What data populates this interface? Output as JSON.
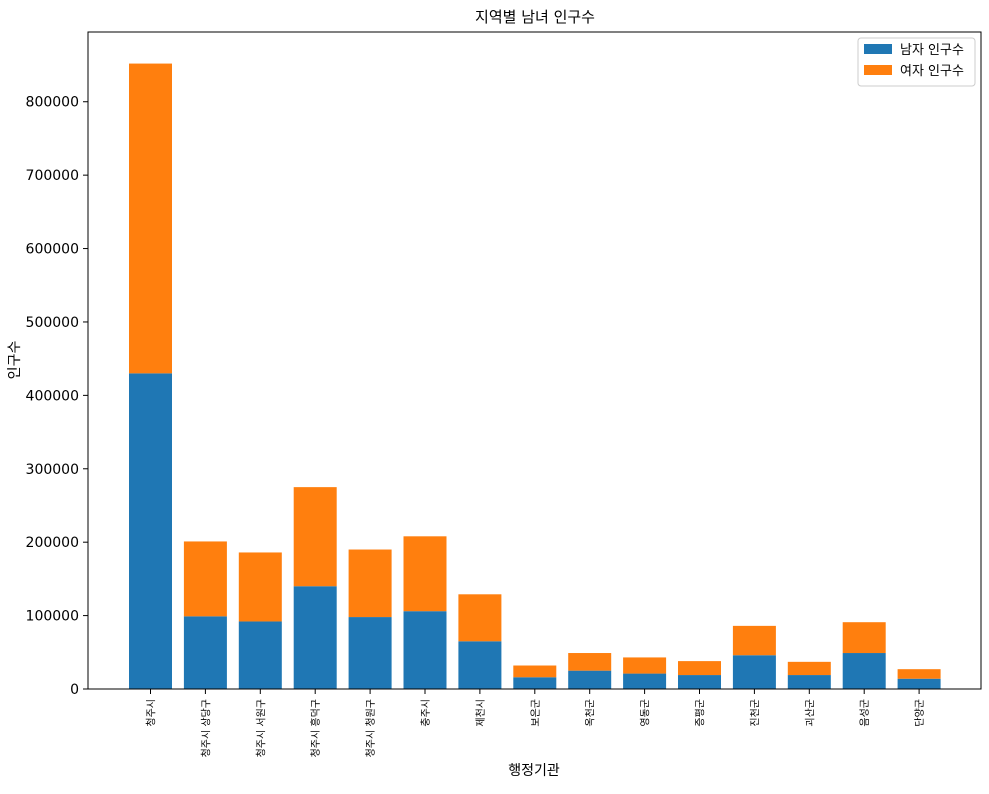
{
  "chart_data": {
    "type": "bar",
    "stacked": true,
    "title": "지역별 남녀 인구수",
    "xlabel": "행정기관",
    "ylabel": "인구수",
    "ylim": [
      0,
      895000
    ],
    "yticks": [
      0,
      100000,
      200000,
      300000,
      400000,
      500000,
      600000,
      700000,
      800000
    ],
    "ytick_labels": [
      "0",
      "100000",
      "200000",
      "300000",
      "400000",
      "500000",
      "600000",
      "700000",
      "800000"
    ],
    "categories": [
      "청주시",
      "청주시 상당구",
      "청주시 서원구",
      "청주시 흥덕구",
      "청주시 청원구",
      "충주시",
      "제천시",
      "보은군",
      "옥천군",
      "영동군",
      "증평군",
      "진천군",
      "괴산군",
      "음성군",
      "단양군"
    ],
    "series": [
      {
        "name": "남자 인구수",
        "color": "#1f77b4",
        "values": [
          430000,
          99000,
          92000,
          140000,
          98000,
          106000,
          65000,
          16000,
          25000,
          21000,
          19000,
          46000,
          19000,
          49000,
          14000
        ]
      },
      {
        "name": "여자 인구수",
        "color": "#ff7f0e",
        "values": [
          422000,
          102000,
          94000,
          135000,
          92000,
          102000,
          64000,
          16000,
          24000,
          22000,
          19000,
          40000,
          18000,
          42000,
          13000
        ]
      }
    ],
    "legend_position": "top-right",
    "grid": false
  }
}
